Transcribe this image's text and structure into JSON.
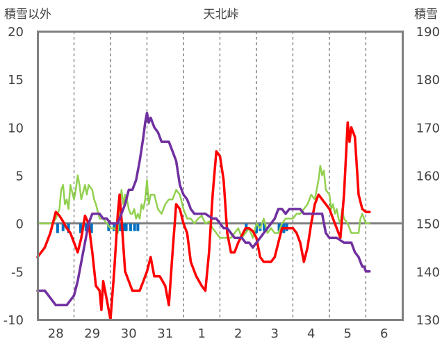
{
  "chart_data": {
    "type": "line",
    "title": "天北峠",
    "ylabel_left": "積雪以外",
    "ylabel_right": "積雪",
    "ylim_left": [
      -10,
      20
    ],
    "ylim_right": [
      130,
      190
    ],
    "yticks_left": [
      "-10",
      "-5",
      "0",
      "5",
      "10",
      "15",
      "20"
    ],
    "yticks_right": [
      "130",
      "140",
      "150",
      "160",
      "170",
      "180",
      "190"
    ],
    "x_range_days": [
      0,
      10
    ],
    "x_tick_labels": [
      "28",
      "29",
      "30",
      "31",
      "1",
      "2",
      "3",
      "4",
      "5",
      "6"
    ],
    "grid": "dashed vertical lines at day boundaries",
    "colors": {
      "temperature": "#ff0000",
      "wind": "#92d050",
      "snow_depth": "#7030a0",
      "precipitation": "#0070c0",
      "zero_line": "#808080",
      "frame": "#808080",
      "grid": "#404040"
    },
    "series": [
      {
        "name": "temperature",
        "axis": "left",
        "points": [
          [
            0.0,
            -3.5
          ],
          [
            0.2,
            -2.5
          ],
          [
            0.35,
            -1.0
          ],
          [
            0.5,
            1.2
          ],
          [
            0.6,
            0.8
          ],
          [
            0.7,
            0.2
          ],
          [
            0.8,
            -0.5
          ],
          [
            0.9,
            -1.0
          ],
          [
            1.0,
            -2.0
          ],
          [
            1.1,
            -3.0
          ],
          [
            1.2,
            -1.5
          ],
          [
            1.3,
            0.8
          ],
          [
            1.4,
            0.0
          ],
          [
            1.5,
            -3.0
          ],
          [
            1.6,
            -6.5
          ],
          [
            1.7,
            -7.0
          ],
          [
            1.75,
            -9.0
          ],
          [
            1.8,
            -6.0
          ],
          [
            1.9,
            -8.0
          ],
          [
            2.0,
            -10.0
          ],
          [
            2.1,
            -5.0
          ],
          [
            2.2,
            1.0
          ],
          [
            2.25,
            3.0
          ],
          [
            2.3,
            0.5
          ],
          [
            2.4,
            -5.0
          ],
          [
            2.5,
            -6.0
          ],
          [
            2.6,
            -7.0
          ],
          [
            2.8,
            -7.0
          ],
          [
            2.9,
            -6.0
          ],
          [
            3.0,
            -5.0
          ],
          [
            3.1,
            -3.5
          ],
          [
            3.2,
            -5.5
          ],
          [
            3.35,
            -5.5
          ],
          [
            3.5,
            -6.5
          ],
          [
            3.6,
            -8.5
          ],
          [
            3.7,
            -3.0
          ],
          [
            3.8,
            2.0
          ],
          [
            3.9,
            1.5
          ],
          [
            4.0,
            0.0
          ],
          [
            4.1,
            -1.0
          ],
          [
            4.2,
            -4.0
          ],
          [
            4.35,
            -5.5
          ],
          [
            4.5,
            -6.5
          ],
          [
            4.6,
            -7.0
          ],
          [
            4.7,
            -3.0
          ],
          [
            4.8,
            3.0
          ],
          [
            4.9,
            7.5
          ],
          [
            5.0,
            7.0
          ],
          [
            5.1,
            4.5
          ],
          [
            5.2,
            -1.0
          ],
          [
            5.3,
            -3.0
          ],
          [
            5.4,
            -3.0
          ],
          [
            5.5,
            -2.0
          ],
          [
            5.7,
            -0.5
          ],
          [
            5.8,
            -0.5
          ],
          [
            5.9,
            -0.8
          ],
          [
            6.0,
            -1.5
          ],
          [
            6.1,
            -3.5
          ],
          [
            6.2,
            -4.0
          ],
          [
            6.4,
            -4.0
          ],
          [
            6.5,
            -3.5
          ],
          [
            6.6,
            -2.0
          ],
          [
            6.7,
            -0.5
          ],
          [
            6.8,
            -0.5
          ],
          [
            7.0,
            -0.5
          ],
          [
            7.1,
            -1.0
          ],
          [
            7.2,
            -2.0
          ],
          [
            7.3,
            -4.0
          ],
          [
            7.4,
            -2.5
          ],
          [
            7.5,
            0.0
          ],
          [
            7.6,
            2.0
          ],
          [
            7.7,
            3.0
          ],
          [
            7.8,
            2.5
          ],
          [
            7.9,
            2.0
          ],
          [
            8.0,
            1.5
          ],
          [
            8.1,
            0.5
          ],
          [
            8.2,
            -0.5
          ],
          [
            8.3,
            -1.5
          ],
          [
            8.4,
            3.0
          ],
          [
            8.5,
            10.5
          ],
          [
            8.55,
            8.5
          ],
          [
            8.6,
            10.0
          ],
          [
            8.7,
            9.0
          ],
          [
            8.8,
            3.0
          ],
          [
            8.9,
            1.5
          ],
          [
            9.0,
            1.2
          ],
          [
            9.1,
            1.2
          ]
        ]
      },
      {
        "name": "wind",
        "axis": "left",
        "points": [
          [
            0.0,
            0.0
          ],
          [
            0.4,
            0.0
          ],
          [
            0.5,
            0.5
          ],
          [
            0.6,
            1.5
          ],
          [
            0.65,
            3.5
          ],
          [
            0.7,
            4.0
          ],
          [
            0.75,
            2.0
          ],
          [
            0.8,
            2.5
          ],
          [
            0.85,
            1.5
          ],
          [
            0.9,
            4.0
          ],
          [
            1.0,
            2.5
          ],
          [
            1.05,
            3.5
          ],
          [
            1.1,
            5.0
          ],
          [
            1.15,
            4.0
          ],
          [
            1.2,
            2.5
          ],
          [
            1.3,
            4.0
          ],
          [
            1.35,
            3.0
          ],
          [
            1.4,
            4.0
          ],
          [
            1.5,
            3.5
          ],
          [
            1.55,
            2.5
          ],
          [
            1.6,
            2.0
          ],
          [
            1.7,
            0.5
          ],
          [
            1.8,
            0.5
          ],
          [
            1.9,
            0.0
          ],
          [
            2.0,
            -0.5
          ],
          [
            2.1,
            -0.5
          ],
          [
            2.2,
            -1.0
          ],
          [
            2.25,
            1.5
          ],
          [
            2.3,
            3.5
          ],
          [
            2.35,
            2.0
          ],
          [
            2.4,
            3.0
          ],
          [
            2.45,
            2.5
          ],
          [
            2.5,
            1.5
          ],
          [
            2.55,
            1.0
          ],
          [
            2.6,
            1.0
          ],
          [
            2.65,
            1.5
          ],
          [
            2.7,
            0.5
          ],
          [
            2.75,
            1.0
          ],
          [
            2.8,
            0.5
          ],
          [
            2.85,
            2.0
          ],
          [
            2.9,
            1.5
          ],
          [
            2.95,
            2.5
          ],
          [
            3.0,
            4.5
          ],
          [
            3.05,
            2.0
          ],
          [
            3.1,
            3.0
          ],
          [
            3.2,
            3.0
          ],
          [
            3.3,
            1.5
          ],
          [
            3.4,
            1.0
          ],
          [
            3.5,
            2.0
          ],
          [
            3.6,
            2.5
          ],
          [
            3.7,
            2.5
          ],
          [
            3.8,
            3.5
          ],
          [
            3.9,
            3.0
          ],
          [
            4.0,
            1.5
          ],
          [
            4.1,
            0.5
          ],
          [
            4.2,
            0.5
          ],
          [
            4.3,
            0.0
          ],
          [
            4.4,
            0.5
          ],
          [
            4.5,
            0.8
          ],
          [
            4.6,
            0.0
          ],
          [
            4.7,
            0.2
          ],
          [
            4.8,
            -0.5
          ],
          [
            4.9,
            -1.0
          ],
          [
            5.0,
            -1.5
          ],
          [
            5.1,
            -1.5
          ],
          [
            5.2,
            -1.5
          ],
          [
            5.3,
            -1.5
          ],
          [
            5.4,
            -1.0
          ],
          [
            5.5,
            -0.5
          ],
          [
            5.6,
            -1.5
          ],
          [
            5.7,
            -1.0
          ],
          [
            5.8,
            -0.5
          ],
          [
            5.9,
            -1.5
          ],
          [
            6.0,
            0.0
          ],
          [
            6.1,
            -0.5
          ],
          [
            6.2,
            0.5
          ],
          [
            6.3,
            -1.0
          ],
          [
            6.4,
            -0.5
          ],
          [
            6.5,
            -1.0
          ],
          [
            6.6,
            -1.0
          ],
          [
            6.7,
            0.0
          ],
          [
            6.8,
            0.5
          ],
          [
            6.9,
            0.5
          ],
          [
            7.0,
            0.5
          ],
          [
            7.1,
            1.0
          ],
          [
            7.2,
            1.0
          ],
          [
            7.3,
            1.5
          ],
          [
            7.4,
            2.0
          ],
          [
            7.5,
            3.0
          ],
          [
            7.6,
            2.5
          ],
          [
            7.65,
            3.5
          ],
          [
            7.7,
            4.5
          ],
          [
            7.75,
            6.0
          ],
          [
            7.8,
            5.0
          ],
          [
            7.85,
            5.5
          ],
          [
            7.9,
            3.5
          ],
          [
            8.0,
            3.0
          ],
          [
            8.05,
            1.5
          ],
          [
            8.1,
            2.0
          ],
          [
            8.15,
            1.0
          ],
          [
            8.2,
            1.5
          ],
          [
            8.25,
            0.5
          ],
          [
            8.3,
            0.0
          ],
          [
            8.35,
            1.5
          ],
          [
            8.4,
            0.5
          ],
          [
            8.5,
            0.0
          ],
          [
            8.6,
            -1.0
          ],
          [
            8.8,
            -1.0
          ],
          [
            8.85,
            0.5
          ],
          [
            8.9,
            1.0
          ],
          [
            9.0,
            0.0
          ],
          [
            9.1,
            0.0
          ]
        ]
      },
      {
        "name": "snow_depth",
        "axis": "right",
        "points": [
          [
            0.0,
            136
          ],
          [
            0.2,
            136
          ],
          [
            0.3,
            135
          ],
          [
            0.4,
            134
          ],
          [
            0.5,
            133
          ],
          [
            0.6,
            133
          ],
          [
            0.8,
            133
          ],
          [
            0.9,
            134
          ],
          [
            1.0,
            135
          ],
          [
            1.1,
            138
          ],
          [
            1.2,
            142
          ],
          [
            1.3,
            146
          ],
          [
            1.4,
            150
          ],
          [
            1.5,
            152
          ],
          [
            1.6,
            152
          ],
          [
            1.7,
            152
          ],
          [
            1.8,
            151
          ],
          [
            1.9,
            151
          ],
          [
            2.0,
            150
          ],
          [
            2.1,
            150
          ],
          [
            2.2,
            150
          ],
          [
            2.3,
            152
          ],
          [
            2.4,
            154
          ],
          [
            2.5,
            157
          ],
          [
            2.6,
            157
          ],
          [
            2.7,
            159
          ],
          [
            2.8,
            163
          ],
          [
            2.9,
            168
          ],
          [
            2.95,
            171
          ],
          [
            3.0,
            173
          ],
          [
            3.05,
            171
          ],
          [
            3.1,
            172
          ],
          [
            3.2,
            170
          ],
          [
            3.3,
            169
          ],
          [
            3.4,
            167
          ],
          [
            3.5,
            167
          ],
          [
            3.6,
            167
          ],
          [
            3.7,
            165
          ],
          [
            3.8,
            163
          ],
          [
            3.9,
            158
          ],
          [
            4.0,
            156
          ],
          [
            4.1,
            155
          ],
          [
            4.2,
            153
          ],
          [
            4.3,
            152
          ],
          [
            4.4,
            152
          ],
          [
            4.6,
            152
          ],
          [
            4.8,
            151
          ],
          [
            4.9,
            151
          ],
          [
            5.0,
            150
          ],
          [
            5.1,
            149
          ],
          [
            5.2,
            149
          ],
          [
            5.3,
            148
          ],
          [
            5.4,
            147
          ],
          [
            5.6,
            147
          ],
          [
            5.7,
            146
          ],
          [
            5.8,
            146
          ],
          [
            5.9,
            145
          ],
          [
            6.0,
            146
          ],
          [
            6.1,
            147
          ],
          [
            6.2,
            148
          ],
          [
            6.3,
            149
          ],
          [
            6.4,
            150
          ],
          [
            6.5,
            151
          ],
          [
            6.6,
            153
          ],
          [
            6.7,
            153
          ],
          [
            6.8,
            152
          ],
          [
            6.9,
            153
          ],
          [
            7.0,
            153
          ],
          [
            7.2,
            153
          ],
          [
            7.3,
            152
          ],
          [
            7.4,
            152
          ],
          [
            7.6,
            152
          ],
          [
            7.8,
            152
          ],
          [
            7.9,
            148
          ],
          [
            8.0,
            147
          ],
          [
            8.2,
            147
          ],
          [
            8.4,
            146
          ],
          [
            8.6,
            146
          ],
          [
            8.7,
            144
          ],
          [
            8.8,
            143
          ],
          [
            8.9,
            141
          ],
          [
            8.95,
            141
          ],
          [
            9.0,
            140
          ],
          [
            9.1,
            140
          ]
        ]
      }
    ],
    "precipitation_bars": [
      {
        "name": "precipitation",
        "axis": "left",
        "x": [
          0.55,
          0.7,
          0.85,
          1.18,
          1.33,
          1.48,
          1.95,
          2.1,
          2.18,
          2.25,
          2.28,
          2.31,
          2.35,
          2.38,
          2.43,
          2.55,
          2.66,
          2.75,
          5.72,
          6.0,
          6.1,
          6.21,
          6.62,
          6.69,
          6.75,
          6.83
        ],
        "values": [
          -1.0,
          -0.8,
          -1.0,
          -1.0,
          -0.8,
          -1.0,
          -0.8,
          -0.8,
          -0.8,
          -0.8,
          -0.8,
          -0.8,
          -0.8,
          -0.8,
          -0.8,
          -0.8,
          -0.8,
          -0.8,
          -0.8,
          -1.0,
          -0.8,
          -0.8,
          -0.8,
          -0.8,
          -1.0,
          -0.8
        ]
      }
    ]
  }
}
